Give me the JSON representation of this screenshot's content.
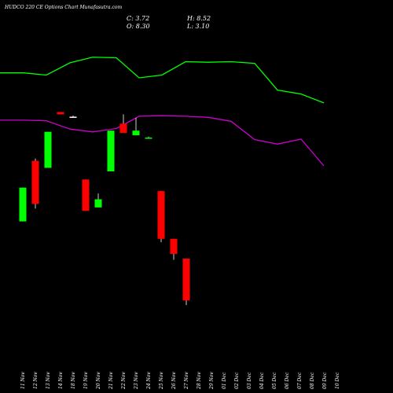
{
  "header": {
    "title": "HUDCO 220  CE Options  Chart Munafasutra.com",
    "close": "C: 3.72",
    "high": "H: 8.52",
    "open": "O: 8.30",
    "low": "L: 3.10"
  },
  "chart_data": {
    "type": "candlestick",
    "title": "HUDCO 220  CE Options  Chart Munafasutra.com",
    "categories": [
      "11 Nov",
      "12 Nov",
      "13 Nov",
      "14 Nov",
      "18 Nov",
      "19 Nov",
      "20 Nov",
      "21 Nov",
      "22 Nov",
      "23 Nov",
      "24 Nov",
      "25 Nov",
      "26 Nov",
      "27 Nov",
      "28 Nov",
      "29 Nov",
      "01 Dec",
      "02 Dec",
      "03 Dec",
      "04 Dec",
      "05 Dec",
      "06 Dec",
      "07 Dec",
      "08 Dec",
      "09 Dec",
      "10 Dec"
    ],
    "price_range": [
      1.0,
      25.0
    ],
    "candles": [
      {
        "date": "11 Nov",
        "open": 10.7,
        "high": 13.6,
        "low": 10.7,
        "close": 13.6,
        "color": "#00ff00"
      },
      {
        "date": "12 Nov",
        "open": 12.2,
        "high": 16.1,
        "low": 11.8,
        "close": 15.9,
        "color": "#ff0000"
      },
      {
        "date": "13 Nov",
        "open": 15.3,
        "high": 18.4,
        "low": 15.3,
        "close": 18.4,
        "color": "#00ff00"
      },
      {
        "date": "14 Nov",
        "open": 20.1,
        "high": 20.1,
        "low": 19.9,
        "close": 19.9,
        "color": "#ff0000"
      },
      {
        "date": "18 Nov",
        "open": 19.7,
        "high": 19.8,
        "low": 19.7,
        "close": 19.7,
        "color": "#ffffff"
      },
      {
        "date": "19 Nov",
        "open": 14.3,
        "high": 14.3,
        "low": 11.6,
        "close": 11.6,
        "color": "#ff0000"
      },
      {
        "date": "20 Nov",
        "open": 11.9,
        "high": 13.1,
        "low": 11.9,
        "close": 12.6,
        "color": "#00ff00"
      },
      {
        "date": "21 Nov",
        "open": 15.0,
        "high": 18.5,
        "low": 15.0,
        "close": 18.5,
        "color": "#00ff00"
      },
      {
        "date": "22 Nov",
        "open": 19.1,
        "high": 19.9,
        "low": 18.3,
        "close": 18.3,
        "color": "#ff0000"
      },
      {
        "date": "25 Nov",
        "open": 18.1,
        "high": 19.6,
        "low": 18.1,
        "close": 18.5,
        "color": "#00ff00"
      },
      {
        "date": "26 Nov",
        "open": 17.9,
        "high": 18.0,
        "low": 17.8,
        "close": 17.9,
        "color": "#00ff00"
      },
      {
        "date": "27 Nov",
        "open": 13.3,
        "high": 13.3,
        "low": 8.9,
        "close": 9.2,
        "color": "#ff0000"
      },
      {
        "date": "28 Nov",
        "open": 9.2,
        "high": 9.2,
        "low": 7.4,
        "close": 7.9,
        "color": "#ff0000"
      },
      {
        "date": "29 Nov",
        "open": 7.5,
        "high": 7.5,
        "low": 3.5,
        "close": 3.9,
        "color": "#ff0000"
      }
    ],
    "overlays": [
      {
        "color": "#00ff00",
        "values": [
          38.8,
          38.8,
          38.4,
          40.6,
          41.6,
          41.5,
          37.9,
          38.4,
          40.8,
          40.7,
          40.8,
          40.5,
          35.7,
          35.0,
          33.4
        ]
      },
      {
        "color": "#cc00cc",
        "values": [
          30.3,
          30.3,
          30.2,
          28.7,
          28.2,
          28.8,
          31.0,
          31.1,
          31.0,
          30.8,
          30.1,
          26.8,
          26.0,
          26.9,
          22.1
        ]
      }
    ],
    "grid": false,
    "legend": "none"
  }
}
